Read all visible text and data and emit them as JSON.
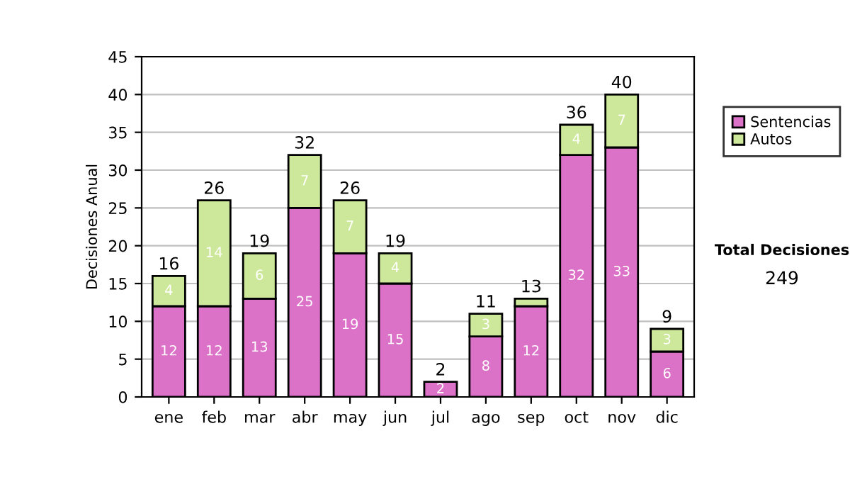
{
  "chart_data": {
    "type": "bar",
    "stacked": true,
    "ylabel": "Decisiones Anual",
    "categories": [
      "ene",
      "feb",
      "mar",
      "abr",
      "may",
      "jun",
      "jul",
      "ago",
      "sep",
      "oct",
      "nov",
      "dic"
    ],
    "series": [
      {
        "name": "Sentencias",
        "color": "#dc72c8",
        "values": [
          12,
          12,
          13,
          25,
          19,
          15,
          2,
          8,
          12,
          32,
          33,
          6
        ],
        "value_labels": [
          "12",
          "12",
          "13",
          "25",
          "19",
          "15",
          "2",
          "8",
          "12",
          "32",
          "33",
          "6"
        ]
      },
      {
        "name": "Autos",
        "color": "#cde89a",
        "values": [
          4,
          14,
          6,
          7,
          7,
          4,
          null,
          3,
          1,
          4,
          7,
          3
        ],
        "value_labels": [
          "4",
          "14",
          "6",
          "7",
          "7",
          "4",
          null,
          "3",
          null,
          "4",
          "7",
          "3"
        ]
      }
    ],
    "totals": [
      "16",
      "26",
      "19",
      "32",
      "26",
      "19",
      "2",
      "11",
      "13",
      "36",
      "40",
      "9"
    ],
    "ylim": [
      0,
      45
    ],
    "yticks": [
      0,
      5,
      10,
      15,
      20,
      25,
      30,
      35,
      40,
      45
    ],
    "grid": "y",
    "legend": "right",
    "annotations": [
      "Total Decisiones",
      "249"
    ]
  }
}
